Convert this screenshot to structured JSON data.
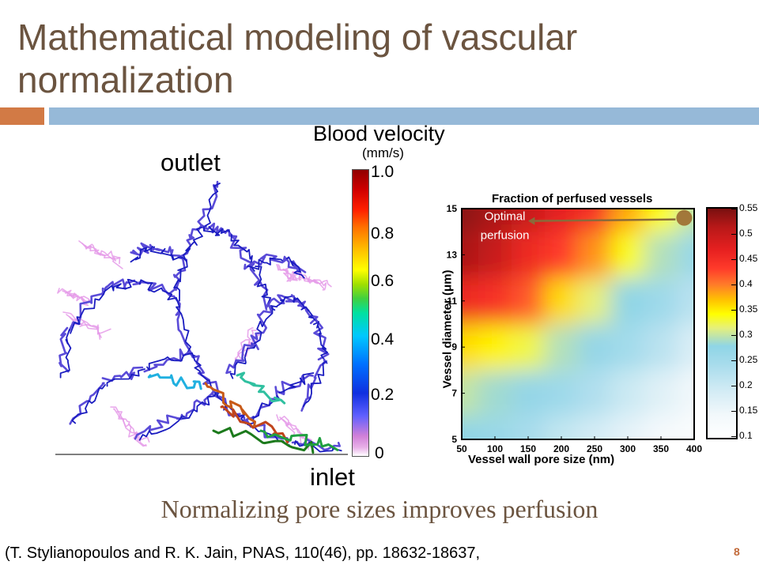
{
  "slide": {
    "title": "Mathematical modeling of vascular normalization",
    "subtitle": "Normalizing pore sizes improves perfusion",
    "citation": "(T. Stylianopoulos and R. K. Jain, PNAS, 110(46), pp. 18632-18637,",
    "page_number": "8",
    "colors": {
      "title": "#6b5440",
      "accent_orange": "#d27a45",
      "accent_blue": "#96b9d8"
    }
  },
  "network_figure": {
    "label_outlet": "outlet",
    "label_inlet": "inlet",
    "colorbar_title": "Blood velocity",
    "colorbar_units": "(mm/s)",
    "colorbar_ticks": [
      "1.0",
      "0.8",
      "0.6",
      "0.4",
      "0.2",
      "0"
    ]
  },
  "heatmap_figure": {
    "title": "Fraction of perfused vessels",
    "annotation": [
      "Optimal",
      "perfusion"
    ],
    "xlabel": "Vessel wall pore size (nm)",
    "ylabel": "Vessel diameter (μm)",
    "xticks": [
      "50",
      "100",
      "150",
      "200",
      "250",
      "300",
      "350",
      "400"
    ],
    "yticks": [
      "5",
      "7",
      "9",
      "11",
      "13",
      "15"
    ],
    "colorbar_ticks": [
      "0.55",
      "0.5",
      "0.45",
      "0.4",
      "0.35",
      "0.3",
      "0.25",
      "0.2",
      "0.15",
      "0.1"
    ]
  },
  "chart_data": {
    "type": "heatmap",
    "title": "Fraction of perfused vessels",
    "xlabel": "Vessel wall pore size (nm)",
    "ylabel": "Vessel diameter (μm)",
    "xlim": [
      50,
      400
    ],
    "ylim": [
      5,
      15
    ],
    "clim": [
      0.1,
      0.55
    ],
    "x": [
      50,
      100,
      150,
      200,
      250,
      300,
      350,
      400
    ],
    "y": [
      5,
      7,
      9,
      11,
      13,
      15
    ],
    "z": [
      [
        0.3,
        0.28,
        0.25,
        0.22,
        0.2,
        0.17,
        0.14,
        0.12
      ],
      [
        0.33,
        0.31,
        0.29,
        0.27,
        0.24,
        0.21,
        0.18,
        0.15
      ],
      [
        0.43,
        0.41,
        0.37,
        0.32,
        0.29,
        0.26,
        0.23,
        0.19
      ],
      [
        0.52,
        0.51,
        0.49,
        0.43,
        0.35,
        0.3,
        0.27,
        0.23
      ],
      [
        0.55,
        0.54,
        0.52,
        0.5,
        0.47,
        0.39,
        0.32,
        0.28
      ],
      [
        0.56,
        0.55,
        0.54,
        0.53,
        0.51,
        0.46,
        0.4,
        0.33
      ]
    ],
    "annotation": {
      "text": "Optimal perfusion",
      "x": 385,
      "y": 14.6
    }
  }
}
